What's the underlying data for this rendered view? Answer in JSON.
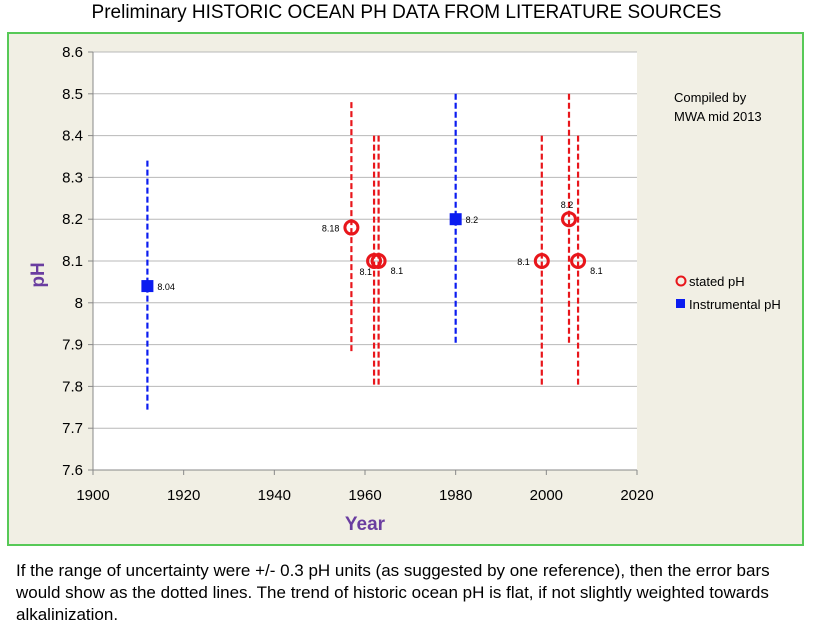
{
  "page": {
    "title": "Preliminary HISTORIC OCEAN PH DATA FROM LITERATURE SOURCES",
    "caption": "If the range of uncertainty were +/- 0.3 pH units (as suggested by one reference),  then the error bars would show as the dotted lines.  The trend of historic ocean pH is flat, if not slightly weighted towards alkalinization."
  },
  "chart_data": {
    "type": "scatter",
    "title": "",
    "xlabel": "Year",
    "ylabel": "pH",
    "xlim": [
      1900,
      2020
    ],
    "ylim": [
      7.6,
      8.6
    ],
    "x_ticks": [
      "1900",
      "1920",
      "1940",
      "1960",
      "1980",
      "2000",
      "2020"
    ],
    "y_ticks": [
      "7.6",
      "7.7",
      "7.8",
      "7.9",
      "8",
      "8.1",
      "8.2",
      "8.3",
      "8.4",
      "8.5",
      "8.6"
    ],
    "grid": "horizontal",
    "legend_position": "right",
    "annotation": [
      "Compiled by",
      "MWA mid 2013"
    ],
    "error_bar": 0.3,
    "colors": {
      "stated": "#e8161b",
      "instrumental": "#0b1cf0",
      "grid": "#b8b8b8",
      "frame": "#57c957"
    },
    "series": [
      {
        "name": "Instrumental pH",
        "marker": "square",
        "points": [
          {
            "x": 1912,
            "y": 8.04,
            "label": "8.04"
          },
          {
            "x": 1980,
            "y": 8.2,
            "label": "8.2"
          }
        ]
      },
      {
        "name": "stated pH",
        "marker": "circle",
        "points": [
          {
            "x": 1957,
            "y": 8.18,
            "label": "8.18",
            "label_side": "left"
          },
          {
            "x": 1962,
            "y": 8.1,
            "label": "8.1",
            "label_side": "below-left"
          },
          {
            "x": 1963,
            "y": 8.1,
            "label": "8.1",
            "label_side": "right"
          },
          {
            "x": 1999,
            "y": 8.1,
            "label": "8.1",
            "label_side": "left"
          },
          {
            "x": 2005,
            "y": 8.2,
            "label": "8.2",
            "label_side": "above"
          },
          {
            "x": 2007,
            "y": 8.1,
            "label": "8.1",
            "label_side": "right"
          }
        ]
      }
    ]
  }
}
